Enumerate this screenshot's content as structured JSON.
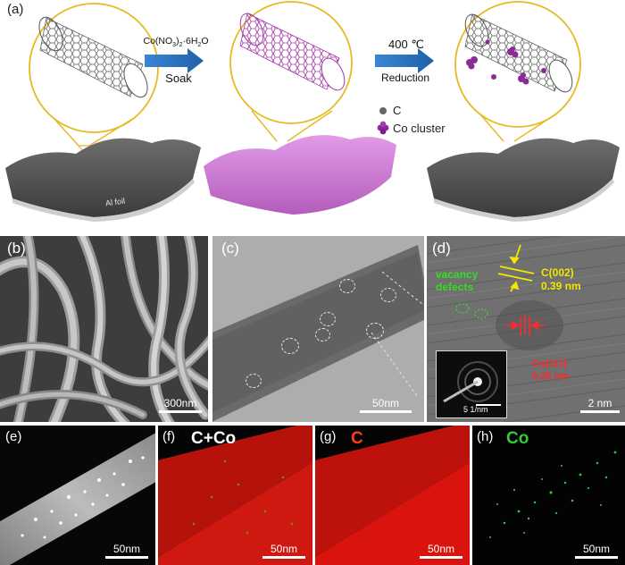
{
  "panel_a": {
    "label": "(a)",
    "step1_reagent": "Co(NO",
    "step1_sub1": "3",
    "step1_mid": ")",
    "step1_sub2": "2",
    "step1_tail": "·6H",
    "step1_sub3": "2",
    "step1_end": "O",
    "step1_action": "Soak",
    "step2_temp": "400 ℃",
    "step2_action": "Reduction",
    "legend_c": "C",
    "legend_co": "Co cluster",
    "substrate_label": "Al foil"
  },
  "panel_b": {
    "label": "(b)",
    "scale": "300nm"
  },
  "panel_c": {
    "label": "(c)",
    "scale": "50nm"
  },
  "panel_d": {
    "label": "(d)",
    "vacancy_line1": "vacancy",
    "vacancy_line2": "defects",
    "c002_plane": "C(002)",
    "c002_spacing": "0.39 nm",
    "co111_plane": "Co(111)",
    "co111_spacing": "0.20 nm",
    "inset_scale": "5 1/nm",
    "scale": "2 nm"
  },
  "panel_e": {
    "label": "(e)",
    "scale": "50nm"
  },
  "panel_f": {
    "label": "(f)",
    "title": "C+Co",
    "scale": "50nm"
  },
  "panel_g": {
    "label": "(g)",
    "title": "C",
    "scale": "50nm"
  },
  "panel_h": {
    "label": "(h)",
    "title": "Co",
    "scale": "50nm"
  },
  "colors": {
    "c_map_red": "#d9140f",
    "co_map_green": "#2ecb3a",
    "annotation_yellow": "#f5e600",
    "annotation_red": "#ff2a2a",
    "annotation_green": "#33dd22",
    "highlight_gold": "#e8b923",
    "process_arrow_blue": "#1f5fa8",
    "cnt_purple": "#b04fb6"
  }
}
